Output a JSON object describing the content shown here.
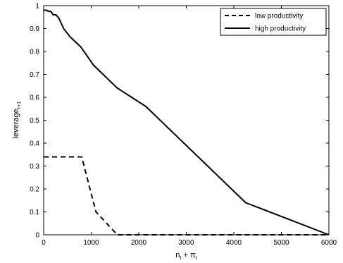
{
  "chart_data": {
    "type": "line",
    "xlabel": "n",
    "xlabel_sub1": "t",
    "xlabel_mid": " + π",
    "xlabel_sub2": "t",
    "ylabel": "leverage",
    "ylabel_sub": "t+1",
    "xlim": [
      0,
      6000
    ],
    "ylim": [
      0,
      1
    ],
    "x_ticks": [
      0,
      1000,
      2000,
      3000,
      4000,
      5000,
      6000
    ],
    "x_tick_labels": [
      "0",
      "1000",
      "2000",
      "3000",
      "4000",
      "5000",
      "6000"
    ],
    "y_ticks": [
      0,
      0.1,
      0.2,
      0.3,
      0.4,
      0.5,
      0.6,
      0.7,
      0.8,
      0.9,
      1
    ],
    "y_tick_labels": [
      "0",
      "0.1",
      "0.2",
      "0.3",
      "0.4",
      "0.5",
      "0.6",
      "0.7",
      "0.8",
      "0.9",
      "1"
    ],
    "grid": false,
    "legend_position": "top-right",
    "series": [
      {
        "name": "low productivity",
        "style": "dashed",
        "color": "#000000",
        "points": [
          [
            0,
            0.34
          ],
          [
            800,
            0.34
          ],
          [
            1100,
            0.1
          ],
          [
            1550,
            0.0
          ],
          [
            6000,
            0.0
          ]
        ]
      },
      {
        "name": "high productivity",
        "style": "solid",
        "color": "#000000",
        "points": [
          [
            0,
            0.98
          ],
          [
            60,
            0.98
          ],
          [
            100,
            0.975
          ],
          [
            150,
            0.975
          ],
          [
            200,
            0.96
          ],
          [
            260,
            0.96
          ],
          [
            320,
            0.945
          ],
          [
            420,
            0.9
          ],
          [
            550,
            0.865
          ],
          [
            780,
            0.82
          ],
          [
            1050,
            0.74
          ],
          [
            1550,
            0.64
          ],
          [
            2150,
            0.56
          ],
          [
            3100,
            0.37
          ],
          [
            4250,
            0.14
          ],
          [
            6000,
            0.0
          ]
        ]
      }
    ]
  }
}
